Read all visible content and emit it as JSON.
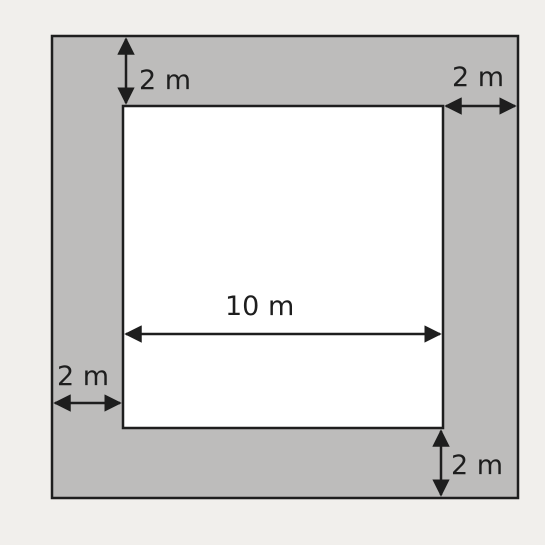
{
  "diagram": {
    "type": "square path around a square garden",
    "labels": {
      "inner_width": "10 m",
      "top_border": "2 m",
      "right_border": "2 m",
      "left_border": "2 m",
      "bottom_border": "2 m"
    },
    "colors": {
      "path_fill": "#bdbcbb",
      "inner_fill": "#ffffff",
      "stroke": "#1e1e1e",
      "background": "#f1efec"
    }
  }
}
